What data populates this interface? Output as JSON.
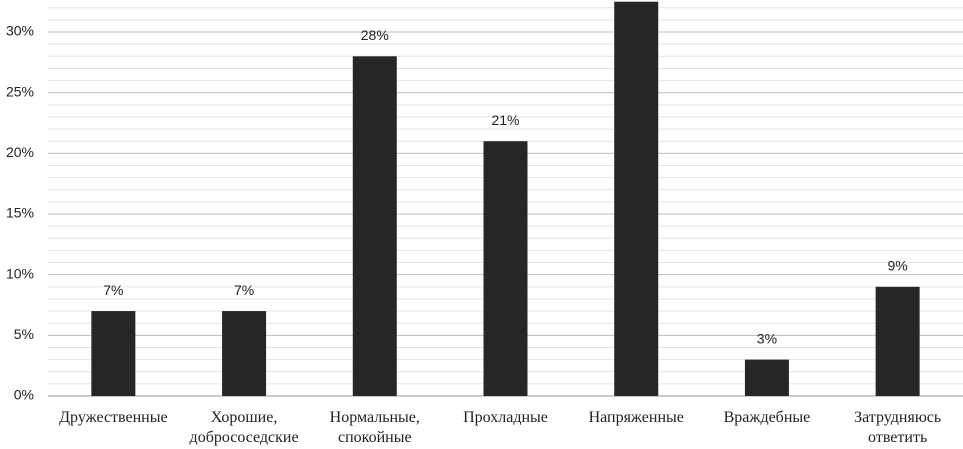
{
  "chart_data": {
    "type": "bar",
    "categories": [
      "Дружественные",
      "Хорошие, добрососедские",
      "Нормальные, спокойные",
      "Прохладные",
      "Напряженные",
      "Враждебные",
      "Затрудняюсь ответить"
    ],
    "values": [
      7,
      7,
      28,
      21,
      32.5,
      3,
      9
    ],
    "value_labels": [
      "7%",
      "7%",
      "28%",
      "21%",
      null,
      "3%",
      "9%"
    ],
    "color": "#262626",
    "ylim": [
      0,
      32.6
    ],
    "yticks": [
      {
        "value": 0,
        "label": "0%"
      },
      {
        "value": 5,
        "label": "5%"
      },
      {
        "value": 10,
        "label": "10%"
      },
      {
        "value": 15,
        "label": "15%"
      },
      {
        "value": 20,
        "label": "20%"
      },
      {
        "value": 25,
        "label": "25%"
      },
      {
        "value": 30,
        "label": "30%"
      }
    ],
    "minor_yticks": [
      1,
      2,
      3,
      4,
      6,
      7,
      8,
      9,
      11,
      12,
      13,
      14,
      16,
      17,
      18,
      19,
      21,
      22,
      23,
      24,
      26,
      27,
      28,
      29,
      31,
      32
    ],
    "grid": true
  }
}
